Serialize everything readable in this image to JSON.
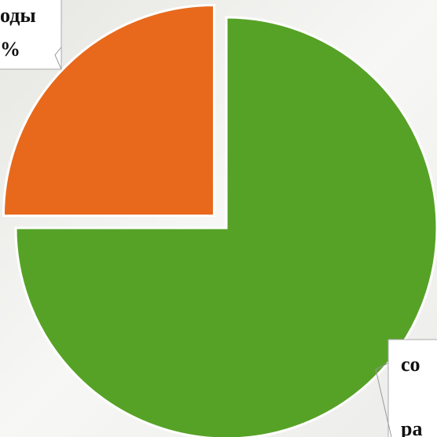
{
  "chart_data": {
    "type": "pie",
    "values": [
      75,
      25
    ],
    "colors": [
      "#56a227",
      "#e8691c"
    ],
    "explode": [
      false,
      true
    ],
    "labels": [
      [
        "со",
        "ра"
      ],
      [
        "оды",
        "%"
      ]
    ]
  }
}
